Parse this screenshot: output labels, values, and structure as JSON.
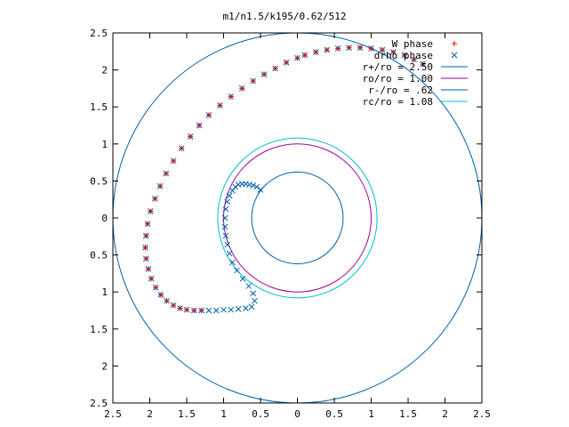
{
  "chart_data": {
    "type": "scatter",
    "title": "m1/n1.5/k195/0.62/512",
    "xlabel": "",
    "ylabel": "",
    "xlim": [
      -2.5,
      2.5
    ],
    "ylim": [
      -2.5,
      2.5
    ],
    "x_ticks": [
      -2.5,
      -2,
      -1.5,
      -1,
      -0.5,
      0,
      0.5,
      1,
      1.5,
      2,
      2.5
    ],
    "y_ticks": [
      -2.5,
      -2,
      -1.5,
      -1,
      -0.5,
      0,
      0.5,
      1,
      1.5,
      2,
      2.5
    ],
    "x_tick_labels": [
      "2.5",
      "2",
      "1.5",
      "1",
      "0.5",
      "0",
      "0.5",
      "1",
      "1.5",
      "2",
      "2.5"
    ],
    "y_tick_labels": [
      "2.5",
      "2",
      "1.5",
      "1",
      "0.5",
      "0",
      "0.5",
      "1",
      "1.5",
      "2",
      "2.5"
    ],
    "grid": false,
    "legend_position": "top-right",
    "circles": [
      {
        "label": "r+/ro = 2.50",
        "radius": 2.5,
        "color": "#0060ad"
      },
      {
        "label": "ro/ro = 1.00",
        "radius": 1.0,
        "color": "#9a0096"
      },
      {
        "label": "r-/ro = .62",
        "radius": 0.62,
        "color": "#0060ad"
      },
      {
        "label": "rc/ro = 1.08",
        "radius": 1.08,
        "color": "#00c0c8"
      }
    ],
    "series": [
      {
        "name": "W phase",
        "marker": "+",
        "color": "#ff0000",
        "x": [
          1.7,
          1.58,
          1.45,
          1.3,
          1.15,
          1.0,
          0.85,
          0.7,
          0.55,
          0.4,
          0.25,
          0.1,
          0.0,
          -0.15,
          -0.3,
          -0.45,
          -0.6,
          -0.75,
          -0.9,
          -1.05,
          -1.2,
          -1.33,
          -1.45,
          -1.57,
          -1.68,
          -1.78,
          -1.86,
          -1.93,
          -1.99,
          -2.03,
          -2.05,
          -2.06,
          -2.05,
          -2.02,
          -1.98,
          -1.92,
          -1.85,
          -1.77,
          -1.68,
          -1.59,
          -1.5,
          -1.4,
          -1.3
        ],
        "y": [
          2.08,
          2.14,
          2.2,
          2.24,
          2.27,
          2.29,
          2.3,
          2.3,
          2.29,
          2.27,
          2.24,
          2.2,
          2.16,
          2.1,
          2.02,
          1.94,
          1.85,
          1.75,
          1.64,
          1.52,
          1.39,
          1.25,
          1.1,
          0.94,
          0.77,
          0.6,
          0.43,
          0.26,
          0.09,
          -0.08,
          -0.24,
          -0.4,
          -0.55,
          -0.69,
          -0.82,
          -0.94,
          -1.04,
          -1.12,
          -1.18,
          -1.22,
          -1.24,
          -1.25,
          -1.25
        ]
      },
      {
        "name": "drho phase",
        "marker": "x",
        "color": "#0060ad",
        "x": [
          1.7,
          1.58,
          1.45,
          1.3,
          1.15,
          1.0,
          0.85,
          0.7,
          0.55,
          0.4,
          0.25,
          0.1,
          0.0,
          -0.15,
          -0.3,
          -0.45,
          -0.6,
          -0.75,
          -0.9,
          -1.05,
          -1.2,
          -1.33,
          -1.45,
          -1.57,
          -1.68,
          -1.78,
          -1.86,
          -1.93,
          -1.99,
          -2.03,
          -2.05,
          -2.06,
          -2.05,
          -2.02,
          -1.98,
          -1.92,
          -1.85,
          -1.77,
          -1.68,
          -1.59,
          -1.5,
          -1.4,
          -1.3,
          -1.2,
          -1.1,
          -1.0,
          -0.9,
          -0.8,
          -0.7,
          -0.62,
          -0.58,
          -0.6,
          -0.66,
          -0.74,
          -0.82,
          -0.88,
          -0.92,
          -0.95,
          -0.97,
          -0.98,
          -0.98,
          -0.97,
          -0.95,
          -0.92,
          -0.88,
          -0.84,
          -0.8,
          -0.75,
          -0.7,
          -0.65,
          -0.6,
          -0.55,
          -0.5
        ],
        "y": [
          2.08,
          2.14,
          2.2,
          2.24,
          2.27,
          2.29,
          2.3,
          2.3,
          2.29,
          2.27,
          2.24,
          2.2,
          2.16,
          2.1,
          2.02,
          1.94,
          1.85,
          1.75,
          1.64,
          1.52,
          1.39,
          1.25,
          1.1,
          0.94,
          0.77,
          0.6,
          0.43,
          0.26,
          0.09,
          -0.08,
          -0.24,
          -0.4,
          -0.55,
          -0.69,
          -0.82,
          -0.94,
          -1.04,
          -1.12,
          -1.18,
          -1.22,
          -1.24,
          -1.25,
          -1.25,
          -1.25,
          -1.25,
          -1.24,
          -1.24,
          -1.23,
          -1.22,
          -1.2,
          -1.12,
          -1.02,
          -0.92,
          -0.82,
          -0.71,
          -0.6,
          -0.48,
          -0.36,
          -0.24,
          -0.12,
          0.0,
          0.12,
          0.22,
          0.3,
          0.37,
          0.42,
          0.45,
          0.46,
          0.46,
          0.45,
          0.44,
          0.42,
          0.38
        ]
      }
    ]
  }
}
